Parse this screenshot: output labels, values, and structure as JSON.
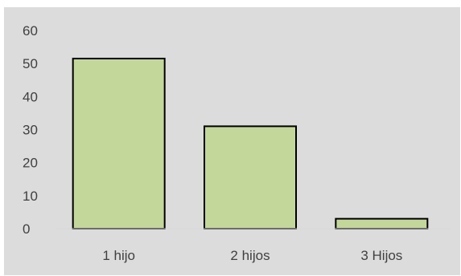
{
  "chart_data": {
    "type": "bar",
    "categories": [
      "1 hijo",
      "2 hijos",
      "3 Hijos"
    ],
    "values": [
      51.5,
      31,
      3
    ],
    "title": "",
    "xlabel": "",
    "ylabel": "",
    "ylim": [
      0,
      60
    ],
    "yticks": [
      "0",
      "10",
      "20",
      "30",
      "40",
      "50",
      "60"
    ],
    "grid": false,
    "legend": "none",
    "bar_color": "#c4d79b",
    "bar_outline_color": "#000000",
    "background_color": "#dcdcdc",
    "label_color": "#404040"
  }
}
